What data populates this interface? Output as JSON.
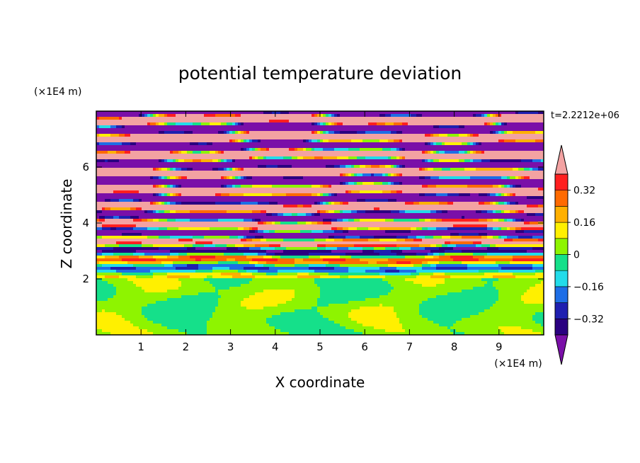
{
  "chart_data": {
    "type": "heatmap",
    "title": "potential temperature deviation",
    "xlabel": "X coordinate",
    "ylabel": "Z coordinate",
    "x_unit": "(×1E4 m)",
    "y_unit": "(×1E4 m)",
    "time_label": "t=2.2212e+06",
    "xlim": [
      0,
      10
    ],
    "ylim": [
      0,
      8
    ],
    "x_ticks": [
      1,
      2,
      3,
      4,
      5,
      6,
      7,
      8,
      9
    ],
    "y_ticks": [
      2,
      4,
      6
    ],
    "colorbar": {
      "levels": [
        -0.4,
        -0.32,
        -0.24,
        -0.16,
        -0.08,
        0,
        0.08,
        0.16,
        0.24,
        0.32,
        0.4
      ],
      "labeled_levels": [
        "0.32",
        "0.16",
        "0",
        "−0.16",
        "−0.32"
      ],
      "colors": [
        "#2a0080",
        "#1f1fb0",
        "#1e6ee6",
        "#22dcea",
        "#15e08a",
        "#8ef400",
        "#fff000",
        "#ffb000",
        "#ff6a00",
        "#ff1f1f"
      ],
      "under_color": "#7a0fa8",
      "over_color": "#f3a2a2"
    }
  }
}
